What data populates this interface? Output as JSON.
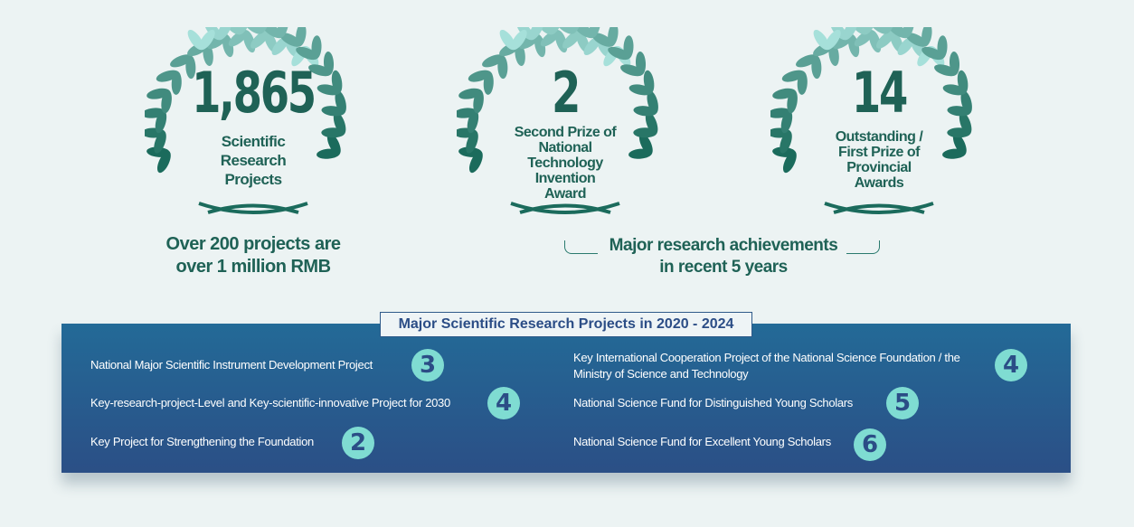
{
  "stats": [
    {
      "number": "1,865",
      "caption": [
        "Scientific",
        "Research",
        "Projects"
      ]
    },
    {
      "number": "2",
      "caption": [
        "Second Prize of",
        "National",
        "Technology",
        "Invention",
        "Award"
      ]
    },
    {
      "number": "14",
      "caption": [
        "Outstanding /",
        "First Prize of",
        "Provincial",
        "Awards"
      ]
    }
  ],
  "left_note": [
    "Over 200 projects are",
    "over 1 million RMB"
  ],
  "right_note": [
    "Major research achievements",
    "in recent 5 years"
  ],
  "panel": {
    "title": "Major Scientific Research Projects in 2020 - 2024",
    "items": [
      {
        "label": "National Major Scientific Instrument Development Project",
        "count": "3"
      },
      {
        "label": "Key-research-project-Level and Key-scientific-innovative Project for 2030",
        "count": "4"
      },
      {
        "label": "Key Project for Strengthening the Foundation",
        "count": "2"
      },
      {
        "label": "Key International Cooperation Project of the National Science  Foundation / the Ministry of Science and Technology",
        "count": "4"
      },
      {
        "label": "National Science Fund for Distinguished Young Scholars",
        "count": "5"
      },
      {
        "label": "National Science Fund for Excellent Young Scholars",
        "count": "6"
      }
    ]
  },
  "colors": {
    "laurel_dark": "#1b6b5c",
    "laurel_light": "#a6e0da",
    "text": "#1f6256",
    "panel": "#2b5a8c",
    "badge": "#7fdcd2"
  }
}
